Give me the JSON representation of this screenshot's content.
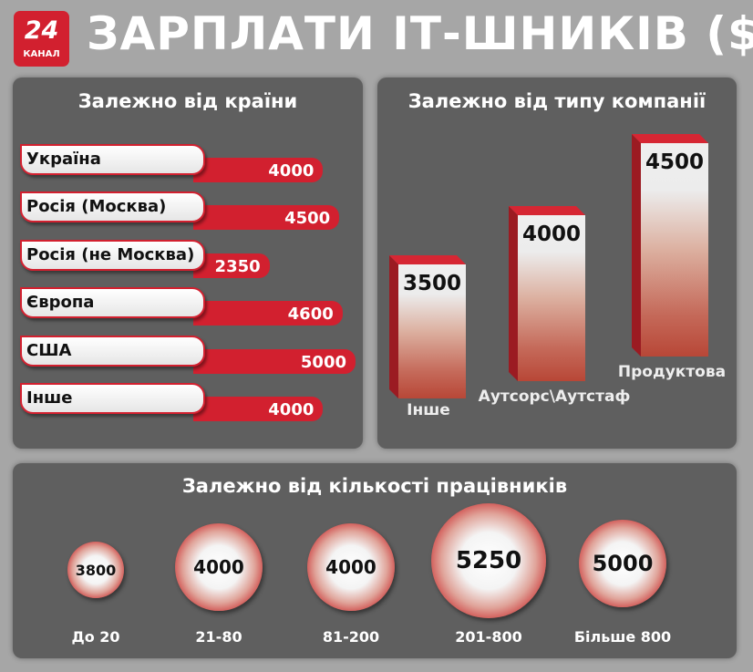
{
  "logo": {
    "number": "24",
    "text": "КАНАЛ"
  },
  "title": "ЗАРПЛАТИ ІТ-ШНИКІВ ($)",
  "chart_data": [
    {
      "type": "bar",
      "orientation": "horizontal",
      "title": "Залежно від країни",
      "categories": [
        "Україна",
        "Росія (Москва)",
        "Росія (не Москва)",
        "Європа",
        "США",
        "Інше"
      ],
      "values": [
        4000,
        4500,
        2350,
        4600,
        5000,
        4000
      ]
    },
    {
      "type": "bar",
      "title": "Залежно від типу компанії",
      "categories": [
        "Інше",
        "Аутсорс\\Аутстаф",
        "Продуктова"
      ],
      "values": [
        3500,
        4000,
        4500
      ]
    },
    {
      "type": "bubble",
      "title": "Залежно від кількості працівників",
      "categories": [
        "До 20",
        "21-80",
        "81-200",
        "201-800",
        "Більше 800"
      ],
      "values": [
        3800,
        4000,
        4000,
        5250,
        5000
      ]
    }
  ],
  "colors": {
    "accent": "#d2202f",
    "panel": "#5f5f5f",
    "background": "#a6a6a6"
  }
}
